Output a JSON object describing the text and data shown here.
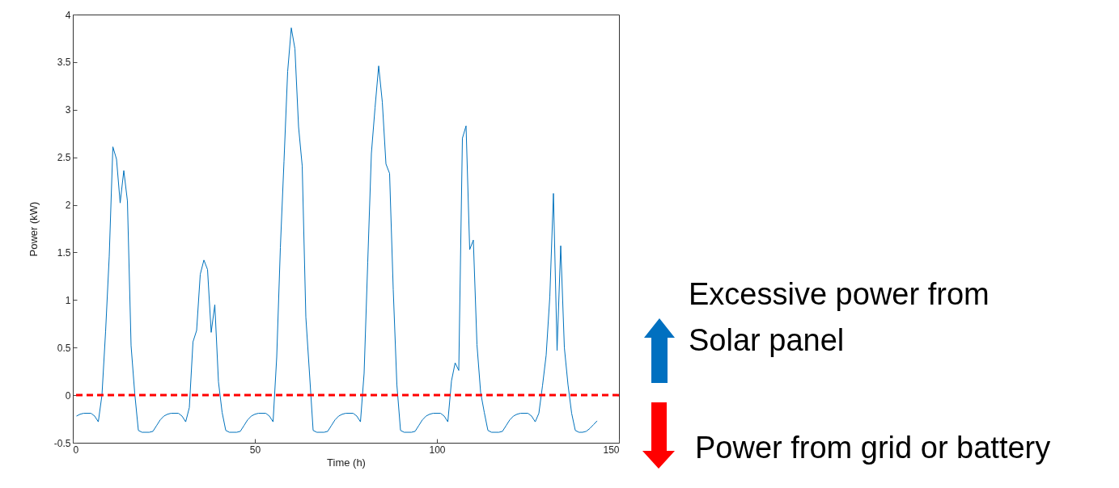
{
  "chart_data": {
    "type": "line",
    "xlabel": "Time (h)",
    "ylabel": "Power (kW)",
    "xlim": [
      0,
      150
    ],
    "xticks": [
      0,
      50,
      100,
      150
    ],
    "ylim": [
      -0.5,
      4
    ],
    "yticks": [
      -0.5,
      0,
      0.5,
      1,
      1.5,
      2,
      2.5,
      3,
      3.5,
      4
    ],
    "grid": false,
    "series": [
      {
        "color": "#0072bd",
        "x": [
          1,
          2,
          3,
          4,
          5,
          6,
          7,
          8,
          9,
          10,
          11,
          12,
          13,
          14,
          15,
          16,
          17,
          18,
          19,
          20,
          21,
          22,
          23,
          24,
          25,
          26,
          27,
          28,
          29,
          30,
          31,
          32,
          33,
          34,
          35,
          36,
          37,
          38,
          39,
          40,
          41,
          42,
          43,
          44,
          45,
          46,
          47,
          48,
          49,
          50,
          51,
          52,
          53,
          54,
          55,
          56,
          57,
          58,
          59,
          60,
          61,
          62,
          63,
          64,
          65,
          66,
          67,
          68,
          69,
          70,
          71,
          72,
          73,
          74,
          75,
          76,
          77,
          78,
          79,
          80,
          81,
          82,
          83,
          84,
          85,
          86,
          87,
          88,
          89,
          90,
          91,
          92,
          93,
          94,
          95,
          96,
          97,
          98,
          99,
          100,
          101,
          102,
          103,
          104,
          105,
          106,
          107,
          108,
          109,
          110,
          111,
          112,
          113,
          114,
          115,
          116,
          117,
          118,
          119,
          120,
          121,
          122,
          123,
          124,
          125,
          126,
          127,
          128,
          129,
          130,
          131,
          132,
          133,
          134,
          135,
          136,
          137,
          138,
          139,
          140,
          141,
          142,
          143,
          144
        ],
        "values": [
          -0.22,
          -0.2,
          -0.19,
          -0.19,
          -0.19,
          -0.22,
          -0.28,
          0.0,
          0.67,
          1.46,
          2.61,
          2.48,
          2.02,
          2.36,
          2.04,
          0.52,
          0.02,
          -0.37,
          -0.39,
          -0.39,
          -0.39,
          -0.38,
          -0.32,
          -0.26,
          -0.22,
          -0.2,
          -0.19,
          -0.19,
          -0.19,
          -0.22,
          -0.28,
          -0.13,
          0.56,
          0.68,
          1.27,
          1.42,
          1.32,
          0.66,
          0.95,
          0.14,
          -0.18,
          -0.37,
          -0.39,
          -0.39,
          -0.39,
          -0.38,
          -0.32,
          -0.26,
          -0.22,
          -0.2,
          -0.19,
          -0.19,
          -0.19,
          -0.22,
          -0.28,
          0.4,
          1.55,
          2.46,
          3.4,
          3.86,
          3.64,
          2.82,
          2.41,
          0.82,
          0.23,
          -0.37,
          -0.39,
          -0.39,
          -0.39,
          -0.38,
          -0.32,
          -0.26,
          -0.22,
          -0.2,
          -0.19,
          -0.19,
          -0.19,
          -0.22,
          -0.28,
          0.23,
          1.4,
          2.54,
          3.02,
          3.46,
          3.08,
          2.43,
          2.33,
          1.11,
          0.11,
          -0.37,
          -0.39,
          -0.39,
          -0.39,
          -0.38,
          -0.32,
          -0.26,
          -0.22,
          -0.2,
          -0.19,
          -0.19,
          -0.19,
          -0.22,
          -0.28,
          0.15,
          0.34,
          0.26,
          2.7,
          2.83,
          1.53,
          1.63,
          0.53,
          0.03,
          -0.18,
          -0.37,
          -0.39,
          -0.39,
          -0.39,
          -0.38,
          -0.32,
          -0.26,
          -0.22,
          -0.2,
          -0.19,
          -0.19,
          -0.19,
          -0.22,
          -0.28,
          -0.19,
          0.1,
          0.42,
          1.03,
          2.12,
          0.47,
          1.57,
          0.5,
          0.11,
          -0.19,
          -0.37,
          -0.39,
          -0.39,
          -0.38,
          -0.35,
          -0.31,
          -0.27
        ]
      }
    ],
    "ref_lines": [
      {
        "axis": "y",
        "value": 0,
        "color": "#ff0000",
        "line_style": "dashed"
      }
    ],
    "annotations": [
      "Excessive power from Solar panel",
      "Power from grid or battery"
    ]
  }
}
